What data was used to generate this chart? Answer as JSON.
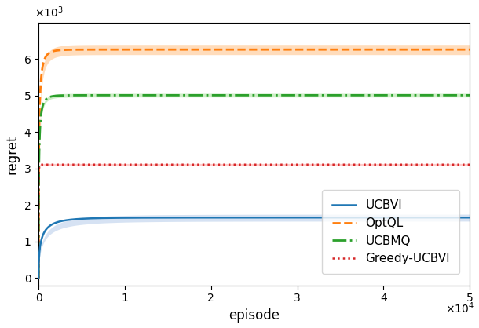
{
  "title": "",
  "xlabel": "episode",
  "ylabel": "regret",
  "xlim": [
    0,
    50000
  ],
  "ylim": [
    -200,
    7000
  ],
  "curves": [
    {
      "name": "UCBVI",
      "color": "#1f77b4",
      "band_color": "#aec7e8",
      "linestyle": "solid",
      "linewidth": 1.8,
      "asymptote": 1660,
      "sqrt_k": 0.055,
      "band_asymptote": 1750,
      "band_sqrt_k": 0.04,
      "band_lower_asymptote": 1560,
      "zorder": 3
    },
    {
      "name": "OptQL",
      "color": "#ff7f0e",
      "band_color": "#ffbb78",
      "linestyle": "dashed",
      "linewidth": 2.0,
      "asymptote": 6260,
      "sqrt_k": 0.12,
      "band_asymptote": 6400,
      "band_sqrt_k": 0.1,
      "band_lower_asymptote": 6120,
      "zorder": 2
    },
    {
      "name": "UCBMQ",
      "color": "#2ca02c",
      "band_color": "#98df8a",
      "linestyle": "dashdot",
      "linewidth": 2.0,
      "asymptote": 5010,
      "sqrt_k": 0.13,
      "band_asymptote": 5060,
      "band_sqrt_k": 0.12,
      "band_lower_asymptote": 4960,
      "zorder": 2
    },
    {
      "name": "Greedy-UCBVI",
      "color": "#d62728",
      "band_color": "#ff9896",
      "linestyle": "dotted",
      "linewidth": 1.8,
      "asymptote": 3110,
      "sqrt_k": 0.4,
      "band_asymptote": 3140,
      "band_sqrt_k": 0.38,
      "band_lower_asymptote": 3080,
      "zorder": 2
    }
  ],
  "legend_loc": "lower right",
  "figsize": [
    6.1,
    4.18
  ],
  "dpi": 100
}
